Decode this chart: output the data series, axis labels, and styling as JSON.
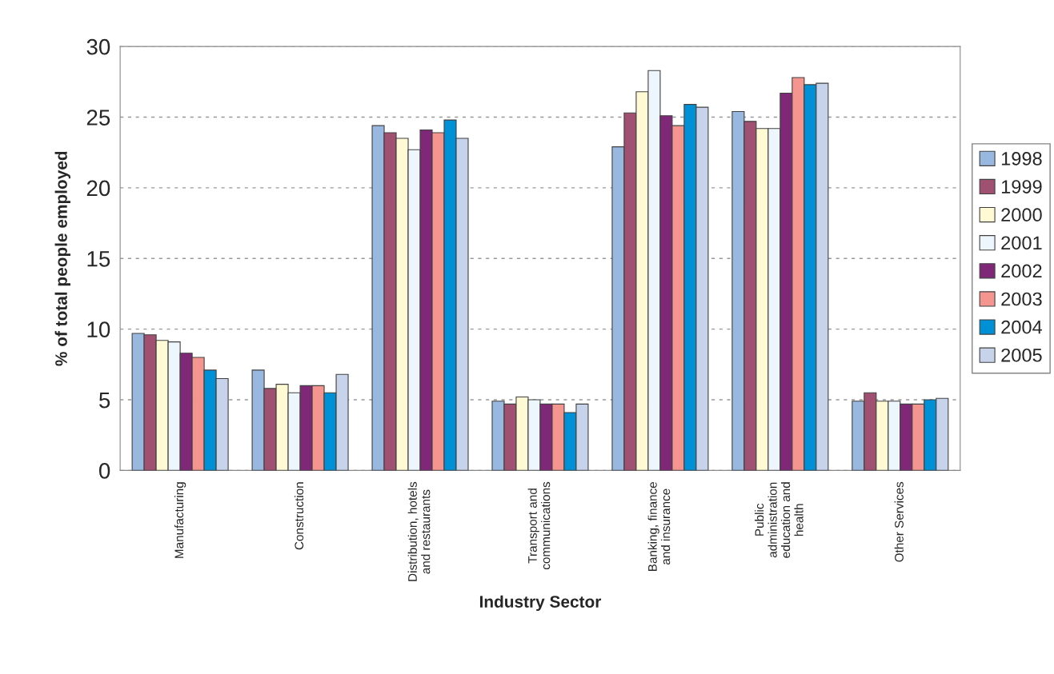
{
  "chart_data": {
    "type": "bar",
    "xlabel": "Industry Sector",
    "ylabel": "% of total people employed",
    "categories": [
      "Manufacturing",
      "Construction",
      "Distribution, hotels\nand restaurants",
      "Transport and\ncommunications",
      "Banking, finance\nand insurance",
      "Public\nadministration\neducation and\nhealth",
      "Other Services"
    ],
    "series": [
      {
        "name": "1998",
        "color": "#99b8e0",
        "values": [
          9.7,
          7.1,
          24.4,
          4.9,
          22.9,
          25.4,
          4.9
        ]
      },
      {
        "name": "1999",
        "color": "#a05070",
        "values": [
          9.6,
          5.8,
          23.9,
          4.7,
          25.3,
          24.7,
          5.5
        ]
      },
      {
        "name": "2000",
        "color": "#fffad4",
        "values": [
          9.2,
          6.1,
          23.5,
          5.2,
          26.8,
          24.2,
          4.9
        ]
      },
      {
        "name": "2001",
        "color": "#eef6fd",
        "values": [
          9.1,
          5.5,
          22.7,
          5.0,
          28.3,
          24.2,
          4.9
        ]
      },
      {
        "name": "2002",
        "color": "#802878",
        "values": [
          8.3,
          6.0,
          24.1,
          4.7,
          25.1,
          26.7,
          4.7
        ]
      },
      {
        "name": "2003",
        "color": "#f4968f",
        "values": [
          8.0,
          6.0,
          23.9,
          4.7,
          24.4,
          27.8,
          4.7
        ]
      },
      {
        "name": "2004",
        "color": "#0090d6",
        "values": [
          7.1,
          5.5,
          24.8,
          4.1,
          25.9,
          27.3,
          5.0
        ]
      },
      {
        "name": "2005",
        "color": "#c6d3ea",
        "values": [
          6.5,
          6.8,
          23.5,
          4.7,
          25.7,
          27.4,
          5.1
        ]
      }
    ],
    "ylim": [
      0,
      30
    ],
    "yticks": [
      0,
      5,
      10,
      15,
      20,
      25,
      30
    ],
    "grid": "y",
    "legend": "right"
  }
}
